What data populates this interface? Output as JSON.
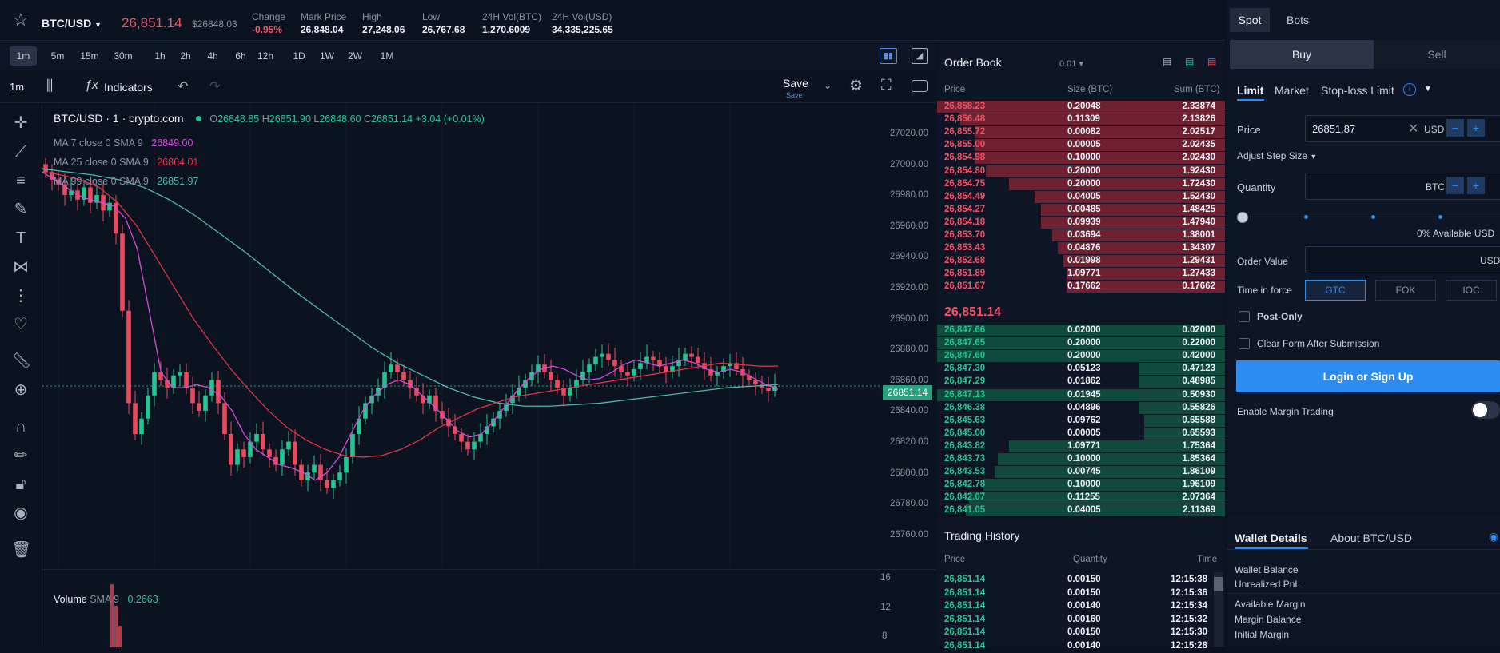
{
  "header": {
    "pair": "BTC/USD",
    "price": "26,851.14",
    "usd_price": "$26848.03",
    "stats": [
      {
        "label": "Change",
        "value": "-0.95%"
      },
      {
        "label": "Mark Price",
        "value": "26,848.04"
      },
      {
        "label": "High",
        "value": "27,248.06"
      },
      {
        "label": "Low",
        "value": "26,767.68"
      },
      {
        "label": "24H Vol(BTC)",
        "value": "1,270.6009"
      },
      {
        "label": "24H Vol(USD)",
        "value": "34,335,225.65"
      }
    ]
  },
  "timeframes": [
    "1m",
    "5m",
    "15m",
    "30m",
    "1h",
    "2h",
    "4h",
    "6h",
    "12h",
    "1D",
    "1W",
    "2W",
    "1M"
  ],
  "active_timeframe": "1m",
  "toolbar": {
    "interval": "1m",
    "indicators": "Indicators",
    "save": "Save",
    "save_sub": "Save"
  },
  "chart": {
    "legend_title": "BTC/USD · 1 · crypto.com",
    "ohlc": {
      "o": "26848.85",
      "h": "26851.90",
      "l": "26848.60",
      "c": "26851.14",
      "chg": "+3.04 (+0.01%)"
    },
    "o_label": "O",
    "h_label": "H",
    "l_label": "L",
    "c_label": "C",
    "ma": [
      {
        "label": "MA 7 close 0 SMA 9",
        "value": "26849.00",
        "color": "#d64bd8"
      },
      {
        "label": "MA 25 close 0 SMA 9",
        "value": "26864.01",
        "color": "#e0344a"
      },
      {
        "label": "MA 99 close 0 SMA 9",
        "value": "26851.97",
        "color": "#4fb8b3"
      }
    ],
    "y_ticks": [
      "27020.00",
      "27000.00",
      "26980.00",
      "26960.00",
      "26940.00",
      "26920.00",
      "26900.00",
      "26880.00",
      "26860.00",
      "26840.00",
      "26820.00",
      "26800.00",
      "26780.00",
      "26760.00"
    ],
    "last_price_tag": "26851.14",
    "volume_label": "Volume",
    "volume_sma": "SMA 9",
    "volume_value": "0.2663",
    "vol_ticks": [
      "16",
      "12",
      "8"
    ]
  },
  "chart_data": {
    "type": "candlestick",
    "y_range": [
      26750,
      27030
    ],
    "close_series": [
      26990,
      26985,
      26982,
      26975,
      26978,
      26972,
      26980,
      26970,
      26975,
      26965,
      26970,
      26950,
      26900,
      26840,
      26820,
      26830,
      26845,
      26860,
      26855,
      26850,
      26858,
      26860,
      26850,
      26840,
      26835,
      26845,
      26855,
      26840,
      26820,
      26800,
      26810,
      26805,
      26815,
      26820,
      26810,
      26805,
      26800,
      26810,
      26815,
      26800,
      26790,
      26795,
      26800,
      26790,
      26785,
      26790,
      26795,
      26805,
      26820,
      26830,
      26840,
      26845,
      26850,
      26860,
      26865,
      26860,
      26855,
      26850,
      26845,
      26840,
      26845,
      26835,
      26830,
      26825,
      26820,
      26815,
      26810,
      26815,
      26820,
      26825,
      26830,
      26835,
      26840,
      26845,
      26850,
      26855,
      26860,
      26865,
      26860,
      26855,
      26850,
      26845,
      26850,
      26855,
      26860,
      26865,
      26870,
      26872,
      26868,
      26864,
      26860,
      26858,
      26862,
      26866,
      26870,
      26868,
      26864,
      26860,
      26864,
      26868,
      26872,
      26870,
      26866,
      26862,
      26858,
      26860,
      26864,
      26866,
      26862,
      26858,
      26855,
      26852,
      26850,
      26848,
      26851
    ],
    "ma7": [
      26990,
      26985,
      26980,
      26975,
      26972,
      26970,
      26968,
      26960,
      26940,
      26900,
      26860,
      26850,
      26850,
      26852,
      26850,
      26845,
      26835,
      26820,
      26810,
      26805,
      26800,
      26798,
      26795,
      26790,
      26795,
      26805,
      26820,
      26835,
      26845,
      26852,
      26855,
      26852,
      26845,
      26838,
      26830,
      26822,
      26818,
      26820,
      26828,
      26838,
      26848,
      26856,
      26862,
      26864,
      26862,
      26858,
      26855,
      26856,
      26860,
      26865,
      26868,
      26866,
      26864,
      26866,
      26868,
      26866,
      26862,
      26860,
      26862,
      26860,
      26856,
      26852,
      26849
    ],
    "ma25": [
      26990,
      26988,
      26985,
      26980,
      26970,
      26955,
      26935,
      26915,
      26895,
      26878,
      26862,
      26848,
      26835,
      26824,
      26816,
      26810,
      26806,
      26805,
      26806,
      26810,
      26816,
      26824,
      26830,
      26836,
      26840,
      26844,
      26846,
      26848,
      26850,
      26852,
      26854,
      26856,
      26858,
      26860,
      26862,
      26864,
      26866,
      26865,
      26864,
      26864
    ],
    "ma99": [
      26992,
      26990,
      26988,
      26985,
      26980,
      26972,
      26962,
      26950,
      26938,
      26925,
      26912,
      26900,
      26888,
      26876,
      26866,
      26858,
      26850,
      26844,
      26840,
      26838,
      26838,
      26839,
      26840,
      26842,
      26844,
      26846,
      26848,
      26850,
      26851,
      26852
    ]
  },
  "orderbook": {
    "title": "Order Book",
    "precision": "0.01",
    "cols": [
      "Price",
      "Size (BTC)",
      "Sum (BTC)"
    ],
    "asks": [
      {
        "price": "26,858.23",
        "size": "0.20048",
        "sum": "2.33874",
        "depth": 1.0
      },
      {
        "price": "26,856.48",
        "size": "0.11309",
        "sum": "2.13826",
        "depth": 0.92
      },
      {
        "price": "26,855.72",
        "size": "0.00082",
        "sum": "2.02517",
        "depth": 0.87
      },
      {
        "price": "26,855.00",
        "size": "0.00005",
        "sum": "2.02435",
        "depth": 0.87
      },
      {
        "price": "26,854.98",
        "size": "0.10000",
        "sum": "2.02430",
        "depth": 0.87
      },
      {
        "price": "26,854.80",
        "size": "0.20000",
        "sum": "1.92430",
        "depth": 0.83
      },
      {
        "price": "26,854.75",
        "size": "0.20000",
        "sum": "1.72430",
        "depth": 0.75
      },
      {
        "price": "26,854.49",
        "size": "0.04005",
        "sum": "1.52430",
        "depth": 0.66
      },
      {
        "price": "26,854.27",
        "size": "0.00485",
        "sum": "1.48425",
        "depth": 0.64
      },
      {
        "price": "26,854.18",
        "size": "0.09939",
        "sum": "1.47940",
        "depth": 0.64
      },
      {
        "price": "26,853.70",
        "size": "0.03694",
        "sum": "1.38001",
        "depth": 0.6
      },
      {
        "price": "26,853.43",
        "size": "0.04876",
        "sum": "1.34307",
        "depth": 0.58
      },
      {
        "price": "26,852.68",
        "size": "0.01998",
        "sum": "1.29431",
        "depth": 0.56
      },
      {
        "price": "26,851.89",
        "size": "1.09771",
        "sum": "1.27433",
        "depth": 0.55
      },
      {
        "price": "26,851.67",
        "size": "0.17662",
        "sum": "0.17662",
        "depth": 0.55
      }
    ],
    "mid_price": "26,851.14",
    "bids": [
      {
        "price": "26,847.66",
        "size": "0.02000",
        "sum": "0.02000",
        "depth": 1.0
      },
      {
        "price": "26,847.65",
        "size": "0.20000",
        "sum": "0.22000",
        "depth": 1.0
      },
      {
        "price": "26,847.60",
        "size": "0.20000",
        "sum": "0.42000",
        "depth": 1.0
      },
      {
        "price": "26,847.30",
        "size": "0.05123",
        "sum": "0.47123",
        "depth": 0.3
      },
      {
        "price": "26,847.29",
        "size": "0.01862",
        "sum": "0.48985",
        "depth": 0.3
      },
      {
        "price": "26,847.13",
        "size": "0.01945",
        "sum": "0.50930",
        "depth": 1.0
      },
      {
        "price": "26,846.38",
        "size": "0.04896",
        "sum": "0.55826",
        "depth": 0.3
      },
      {
        "price": "26,845.63",
        "size": "0.09762",
        "sum": "0.65588",
        "depth": 0.28
      },
      {
        "price": "26,845.00",
        "size": "0.00005",
        "sum": "0.65593",
        "depth": 0.28
      },
      {
        "price": "26,843.82",
        "size": "1.09771",
        "sum": "1.75364",
        "depth": 0.75
      },
      {
        "price": "26,843.73",
        "size": "0.10000",
        "sum": "1.85364",
        "depth": 0.79
      },
      {
        "price": "26,843.53",
        "size": "0.00745",
        "sum": "1.86109",
        "depth": 0.8
      },
      {
        "price": "26,842.78",
        "size": "0.10000",
        "sum": "1.96109",
        "depth": 0.84
      },
      {
        "price": "26,842.07",
        "size": "0.11255",
        "sum": "2.07364",
        "depth": 0.89
      },
      {
        "price": "26,841.05",
        "size": "0.04005",
        "sum": "2.11369",
        "depth": 0.9
      }
    ]
  },
  "trading_history": {
    "title": "Trading History",
    "cols": [
      "Price",
      "Quantity",
      "Time"
    ],
    "rows": [
      {
        "price": "26,851.14",
        "qty": "0.00150",
        "time": "12:15:38"
      },
      {
        "price": "26,851.14",
        "qty": "0.00150",
        "time": "12:15:36"
      },
      {
        "price": "26,851.14",
        "qty": "0.00140",
        "time": "12:15:34"
      },
      {
        "price": "26,851.14",
        "qty": "0.00160",
        "time": "12:15:32"
      },
      {
        "price": "26,851.14",
        "qty": "0.00150",
        "time": "12:15:30"
      },
      {
        "price": "26,851.14",
        "qty": "0.00140",
        "time": "12:15:28"
      }
    ]
  },
  "order_form": {
    "tabs": [
      "Spot",
      "Bots"
    ],
    "sides": [
      "Buy",
      "Sell"
    ],
    "types": [
      "Limit",
      "Market",
      "Stop-loss Limit"
    ],
    "price_label": "Price",
    "price_value": "26851.87",
    "price_unit": "USD",
    "step_label": "Adjust Step Size",
    "qty_label": "Quantity",
    "qty_unit": "BTC",
    "available": "0% Available USD",
    "order_value_label": "Order Value",
    "order_value_unit": "USD",
    "tif_label": "Time in force",
    "tif_options": [
      "GTC",
      "FOK",
      "IOC"
    ],
    "post_only": "Post-Only",
    "clear_form": "Clear Form After Submission",
    "login_button": "Login or Sign Up",
    "margin_label": "Enable Margin Trading"
  },
  "wallet": {
    "tabs": [
      "Wallet Details",
      "About BTC/USD"
    ],
    "items": [
      "Wallet Balance",
      "Unrealized PnL",
      "Available Margin",
      "Margin Balance",
      "Initial Margin"
    ]
  }
}
